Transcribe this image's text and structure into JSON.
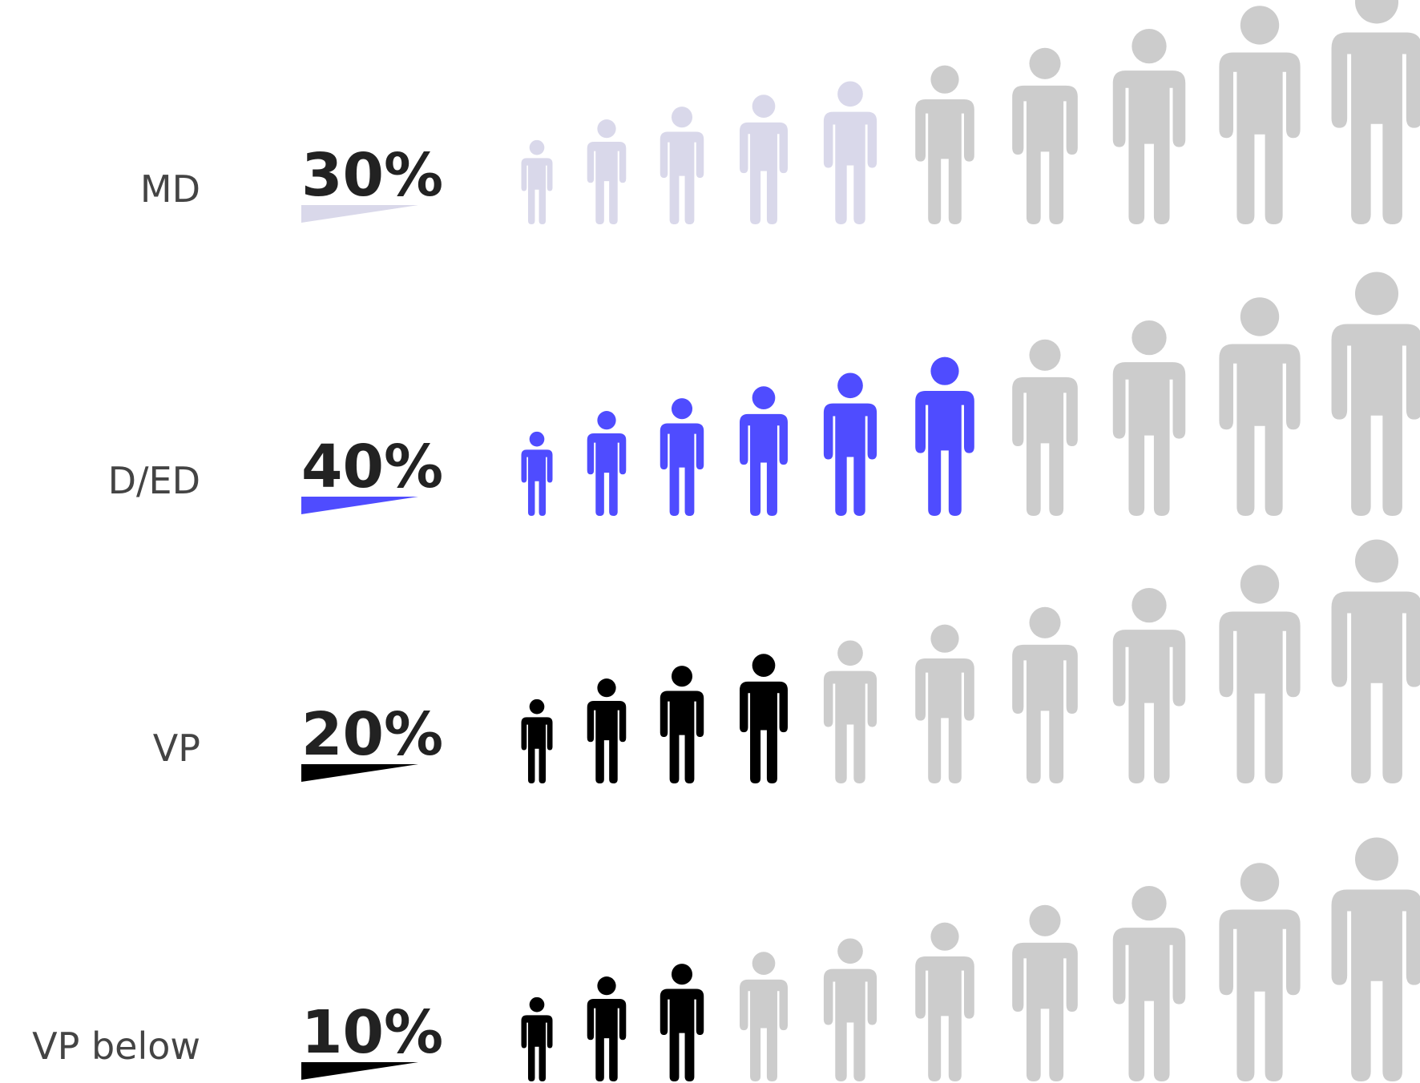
{
  "chart_data": {
    "type": "pictogram",
    "title": "",
    "icons_per_row": 10,
    "icon_shape": "person-icon",
    "inactive_color": "#cccccc",
    "rows": [
      {
        "label": "MD",
        "percent_label": "30%",
        "value": 30,
        "highlighted_icons": 5,
        "color": "#d9d8ea"
      },
      {
        "label": "D/ED",
        "percent_label": "40%",
        "value": 40,
        "highlighted_icons": 6,
        "color": "#4f4cff"
      },
      {
        "label": "VP",
        "percent_label": "20%",
        "value": 20,
        "highlighted_icons": 4,
        "color": "#000000"
      },
      {
        "label": "VP below",
        "percent_label": "10%",
        "value": 10,
        "highlighted_icons": 3,
        "color": "#000000"
      }
    ]
  }
}
